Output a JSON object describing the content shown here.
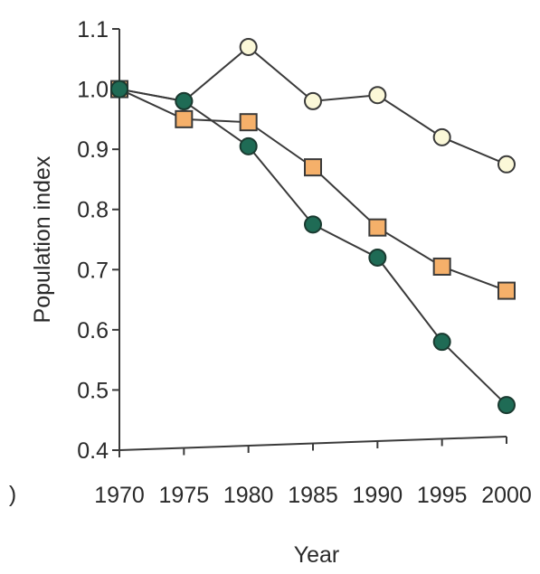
{
  "chart_data": {
    "type": "line",
    "title": "",
    "xlabel": "Year",
    "ylabel": "Population index",
    "x": [
      1970,
      1975,
      1980,
      1985,
      1990,
      1995,
      2000
    ],
    "xlim": [
      1970,
      2000
    ],
    "ylim": [
      0.4,
      1.1
    ],
    "yticks": [
      "0.4",
      "0.5",
      "0.6",
      "0.7",
      "0.8",
      "0.9",
      "1.0",
      "1.1"
    ],
    "xticks": [
      "1970",
      "1975",
      "1980",
      "1985",
      "1990",
      "1995",
      "2000"
    ],
    "grid": false,
    "legend": "none",
    "stray_mark": ")",
    "series": [
      {
        "marker": "circle-open",
        "color": "#fbf8d8",
        "values": [
          1.0,
          0.98,
          1.07,
          0.98,
          0.99,
          0.92,
          0.875
        ]
      },
      {
        "marker": "square",
        "color": "#f5b06a",
        "values": [
          1.0,
          0.95,
          0.945,
          0.87,
          0.77,
          0.705,
          0.665
        ]
      },
      {
        "marker": "circle-filled",
        "color": "#1f6b55",
        "values": [
          1.0,
          0.98,
          0.905,
          0.775,
          0.72,
          0.58,
          0.475
        ]
      }
    ]
  }
}
